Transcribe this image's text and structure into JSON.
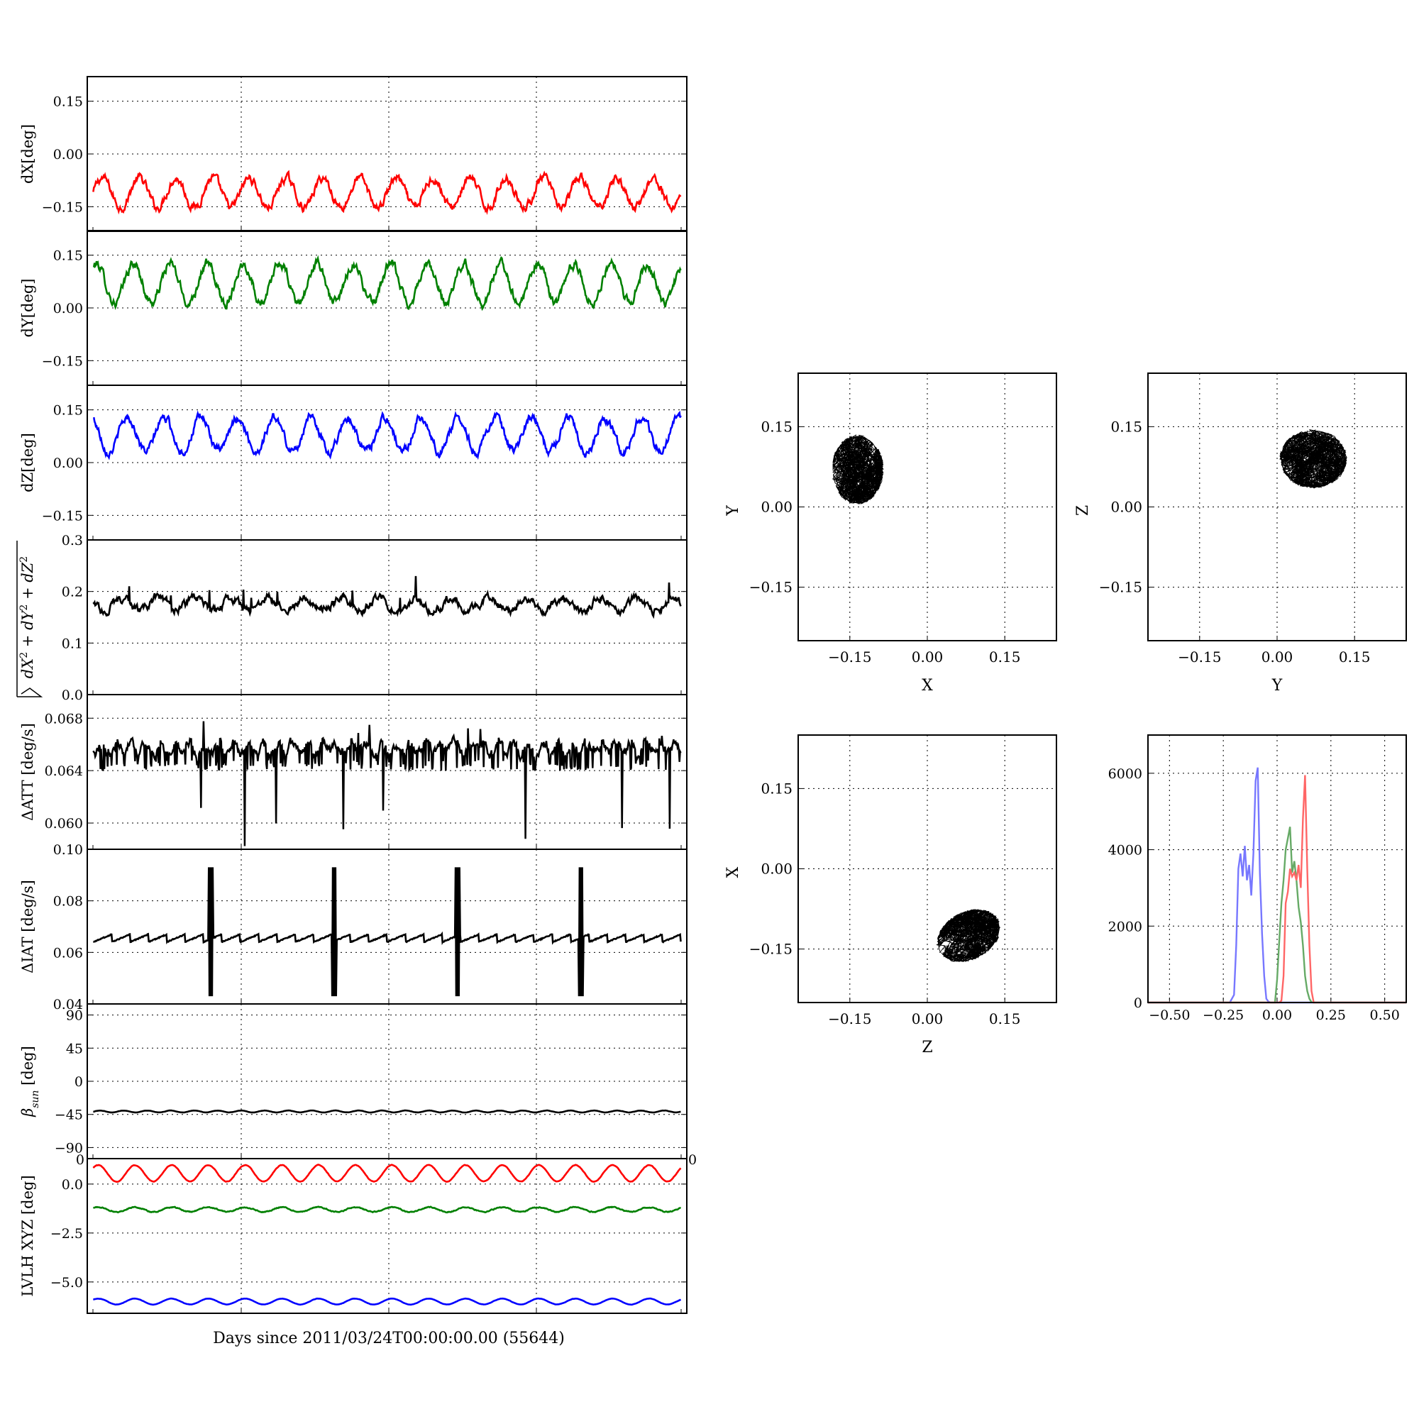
{
  "figure": {
    "xlabel": "Days since 2011/03/24T00:00:00.00 (55644)",
    "grid": true
  },
  "chart_data": [
    {
      "id": "dx",
      "type": "line",
      "ylabel": "dX[deg]",
      "ylim": [
        -0.22,
        0.22
      ],
      "yticks": [
        0.15,
        0.0,
        -0.15
      ],
      "ytick_labels": [
        "0.15",
        "0.00",
        "−0.15"
      ],
      "series": [
        {
          "color": "#ff0000",
          "mean": -0.11,
          "amplitude": 0.042,
          "cycles": 16,
          "noise": 0.009
        }
      ]
    },
    {
      "id": "dy",
      "type": "line",
      "ylabel": "dY[deg]",
      "ylim": [
        -0.22,
        0.22
      ],
      "yticks": [
        0.15,
        0.0,
        -0.15
      ],
      "ytick_labels": [
        "0.15",
        "0.00",
        "−0.15"
      ],
      "series": [
        {
          "color": "#008000",
          "mean": 0.07,
          "amplitude": 0.055,
          "cycles": 16,
          "noise": 0.01
        }
      ]
    },
    {
      "id": "dz",
      "type": "line",
      "ylabel": "dZ[deg]",
      "ylim": [
        -0.22,
        0.22
      ],
      "yticks": [
        0.15,
        0.0,
        -0.15
      ],
      "ytick_labels": [
        "0.15",
        "0.00",
        "−0.15"
      ],
      "series": [
        {
          "color": "#0000ff",
          "mean": 0.08,
          "amplitude": 0.048,
          "cycles": 16,
          "noise": 0.009
        }
      ]
    },
    {
      "id": "dr",
      "type": "line",
      "ylabel_parts": [
        "dX",
        "2",
        " + dY",
        "2",
        " + dZ",
        "2"
      ],
      "ylim": [
        0.0,
        0.3
      ],
      "yticks": [
        0.3,
        0.2,
        0.1,
        0.0
      ],
      "ytick_labels": [
        "0.3",
        "0.2",
        "0.1",
        "0.0"
      ],
      "series": [
        {
          "color": "#000000",
          "mean": 0.175,
          "amplitude": 0.012,
          "cycles": 16,
          "noise": 0.006
        }
      ]
    },
    {
      "id": "datt",
      "type": "line",
      "ylabel": "ΔATT [deg/s]",
      "ylim": [
        0.058,
        0.0698
      ],
      "yticks": [
        0.068,
        0.064,
        0.06
      ],
      "ytick_labels": [
        "0.068",
        "0.064",
        "0.060"
      ],
      "series": [
        {
          "color": "#000000",
          "mean": 0.0657,
          "amplitude": 0.0004,
          "cycles": 40,
          "noise": 0.0003
        }
      ]
    },
    {
      "id": "diat",
      "type": "line",
      "ylabel": "ΔIAT [deg/s]",
      "ylim": [
        0.04,
        0.1
      ],
      "yticks": [
        0.1,
        0.08,
        0.06,
        0.04
      ],
      "ytick_labels": [
        "0.10",
        "0.08",
        "0.06",
        "0.04"
      ],
      "series": [
        {
          "color": "#000000",
          "mean": 0.0655,
          "amplitude": 0.0015,
          "cycles": 32,
          "noise": 0.0003,
          "spikes_x_frac": [
            0.2,
            0.41,
            0.62,
            0.83
          ],
          "spike_range": [
            0.043,
            0.093
          ]
        }
      ]
    },
    {
      "id": "beta",
      "type": "line",
      "ylabel": "β",
      "ylabel_sub": "sun",
      "ylabel_unit": " [deg]",
      "ylim": [
        -105,
        105
      ],
      "yticks": [
        90,
        45,
        0,
        -45,
        -90
      ],
      "ytick_labels": [
        "90",
        "45",
        "0",
        "−45",
        "−90"
      ],
      "series": [
        {
          "color": "#000000",
          "mean": -41,
          "amplitude": 1.3,
          "cycles": 25,
          "noise": 0.1
        }
      ]
    },
    {
      "id": "lvlh",
      "type": "line",
      "ylabel": "LVLH XYZ [deg]",
      "ylim": [
        -6.6,
        1.3
      ],
      "yticks": [
        0.0,
        -2.5,
        -5.0
      ],
      "ytick_labels": [
        "0.0",
        "−2.5",
        "−5.0"
      ],
      "extra_labels": {
        "left": "0",
        "right": "0"
      },
      "series": [
        {
          "color": "#ff0000",
          "mean": 0.55,
          "amplitude": 0.42,
          "cycles": 16,
          "noise": 0.01
        },
        {
          "color": "#008000",
          "mean": -1.3,
          "amplitude": 0.12,
          "cycles": 16,
          "noise": 0.02
        },
        {
          "color": "#0000ff",
          "mean": -6.0,
          "amplitude": 0.15,
          "cycles": 16,
          "noise": 0.005
        }
      ]
    },
    {
      "id": "xy",
      "type": "scatter",
      "xlabel": "X",
      "ylabel": "Y",
      "xlim": [
        -0.25,
        0.25
      ],
      "ylim": [
        -0.25,
        0.25
      ],
      "xticks": [
        -0.15,
        0.0,
        0.15
      ],
      "yticks": [
        0.15,
        0.0,
        -0.15
      ],
      "xtick_labels": [
        "−0.15",
        "0.00",
        "0.15"
      ],
      "ytick_labels": [
        "0.15",
        "0.00",
        "−0.15"
      ],
      "cluster": {
        "center": [
          -0.135,
          0.07
        ],
        "radius": [
          0.05,
          0.065
        ],
        "color": "#000000"
      }
    },
    {
      "id": "yz",
      "type": "scatter",
      "xlabel": "Y",
      "ylabel": "Z",
      "xlim": [
        -0.25,
        0.25
      ],
      "ylim": [
        -0.25,
        0.25
      ],
      "xticks": [
        -0.15,
        0.0,
        0.15
      ],
      "yticks": [
        0.15,
        0.0,
        -0.15
      ],
      "xtick_labels": [
        "−0.15",
        "0.00",
        "0.15"
      ],
      "ytick_labels": [
        "0.15",
        "0.00",
        "−0.15"
      ],
      "cluster": {
        "center": [
          0.07,
          0.09
        ],
        "radius": [
          0.065,
          0.055
        ],
        "color": "#000000"
      }
    },
    {
      "id": "zx",
      "type": "scatter",
      "xlabel": "Z",
      "ylabel": "X",
      "xlim": [
        -0.25,
        0.25
      ],
      "ylim": [
        -0.25,
        0.25
      ],
      "xticks": [
        -0.15,
        0.0,
        0.15
      ],
      "yticks": [
        0.15,
        0.0,
        -0.15
      ],
      "xtick_labels": [
        "−0.15",
        "0.00",
        "0.15"
      ],
      "ytick_labels": [
        "0.15",
        "0.00",
        "−0.15"
      ],
      "cluster": {
        "center": [
          0.08,
          -0.125
        ],
        "radius": [
          0.065,
          0.045
        ],
        "color": "#000000",
        "tilt": 0.45
      }
    },
    {
      "id": "hist",
      "type": "line",
      "xlim": [
        -0.6,
        0.6
      ],
      "ylim": [
        0,
        7000
      ],
      "xticks": [
        -0.5,
        -0.25,
        0.0,
        0.25,
        0.5
      ],
      "xtick_labels": [
        "−0.50",
        "−0.25",
        "0.00",
        "0.25",
        "0.50"
      ],
      "yticks": [
        6000,
        4000,
        2000,
        0
      ],
      "ytick_labels": [
        "6000",
        "4000",
        "2000",
        "0"
      ],
      "series": [
        {
          "color": "#7777ff",
          "x": [
            -0.6,
            -0.22,
            -0.2,
            -0.19,
            -0.18,
            -0.17,
            -0.16,
            -0.15,
            -0.14,
            -0.13,
            -0.12,
            -0.11,
            -0.1,
            -0.09,
            -0.08,
            -0.07,
            -0.06,
            -0.05,
            -0.04,
            -0.03,
            0.6
          ],
          "y": [
            0,
            0,
            200,
            1500,
            3500,
            3900,
            3300,
            4100,
            3200,
            3600,
            2800,
            3900,
            5800,
            6150,
            3400,
            1800,
            700,
            100,
            20,
            0,
            0
          ]
        },
        {
          "color": "#66aa66",
          "x": [
            -0.6,
            -0.01,
            0.0,
            0.01,
            0.02,
            0.03,
            0.04,
            0.05,
            0.06,
            0.07,
            0.08,
            0.09,
            0.1,
            0.11,
            0.12,
            0.13,
            0.14,
            0.15,
            0.16,
            0.17,
            0.6
          ],
          "y": [
            0,
            0,
            600,
            1600,
            2600,
            3200,
            4000,
            4300,
            4600,
            3400,
            3700,
            3200,
            2500,
            2100,
            1500,
            700,
            300,
            100,
            10,
            0,
            0
          ]
        },
        {
          "color": "#ff6666",
          "x": [
            -0.6,
            0.01,
            0.02,
            0.03,
            0.04,
            0.05,
            0.06,
            0.07,
            0.08,
            0.09,
            0.1,
            0.11,
            0.12,
            0.13,
            0.14,
            0.15,
            0.16,
            0.17,
            0.6
          ],
          "y": [
            0,
            0,
            50,
            700,
            2600,
            2900,
            3500,
            3300,
            3400,
            3200,
            3600,
            3000,
            4800,
            5950,
            3500,
            1500,
            300,
            0,
            0
          ]
        }
      ]
    }
  ]
}
